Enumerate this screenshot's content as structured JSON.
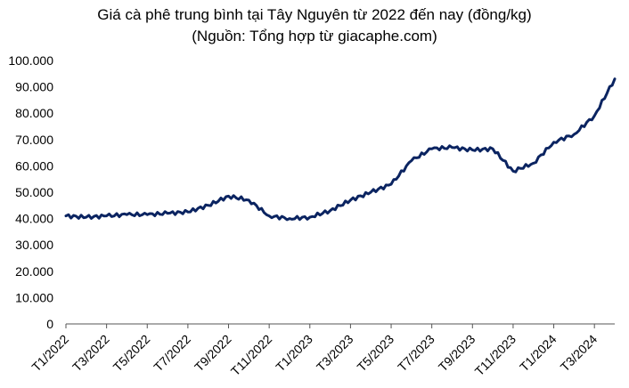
{
  "chart_data": {
    "type": "line",
    "title": "Giá cà phê trung bình tại Tây Nguyên từ 2022 đến nay (đồng/kg)",
    "subtitle": "(Nguồn: Tổng hợp từ giacaphe.com)",
    "xlabel": "",
    "ylabel": "",
    "x_ticks": [
      "T1/2022",
      "T3/2022",
      "T5/2022",
      "T7/2022",
      "T9/2022",
      "T11/2022",
      "T1/2023",
      "T3/2023",
      "T5/2023",
      "T7/2023",
      "T9/2023",
      "T11/2023",
      "T1/2024",
      "T3/2024"
    ],
    "y_ticks": [
      "0",
      "10.000",
      "20.000",
      "30.000",
      "40.000",
      "50.000",
      "60.000",
      "70.000",
      "80.000",
      "90.000",
      "100.000"
    ],
    "ylim": [
      0,
      100000
    ],
    "xlim": [
      "2022-01",
      "2024-04"
    ],
    "grid": false,
    "legend": "none",
    "color": "#0b2461",
    "series": [
      {
        "x": [
          "2022-01",
          "2022-02",
          "2022-03",
          "2022-04",
          "2022-05",
          "2022-06",
          "2022-07",
          "2022-08",
          "2022-09",
          "2022-10",
          "2022-11",
          "2022-12",
          "2023-01",
          "2023-02",
          "2023-03",
          "2023-04",
          "2023-05",
          "2023-06",
          "2023-07",
          "2023-08",
          "2023-09",
          "2023-10",
          "2023-11",
          "2023-12",
          "2024-01",
          "2024-02",
          "2024-03",
          "2024-04"
        ],
        "values": [
          41000,
          40500,
          41000,
          41500,
          41500,
          42000,
          42500,
          45000,
          48500,
          47000,
          41000,
          40000,
          40500,
          43000,
          47000,
          50000,
          53000,
          62000,
          66500,
          67000,
          66000,
          66500,
          58000,
          61000,
          69000,
          72000,
          79000,
          93000
        ]
      }
    ]
  }
}
